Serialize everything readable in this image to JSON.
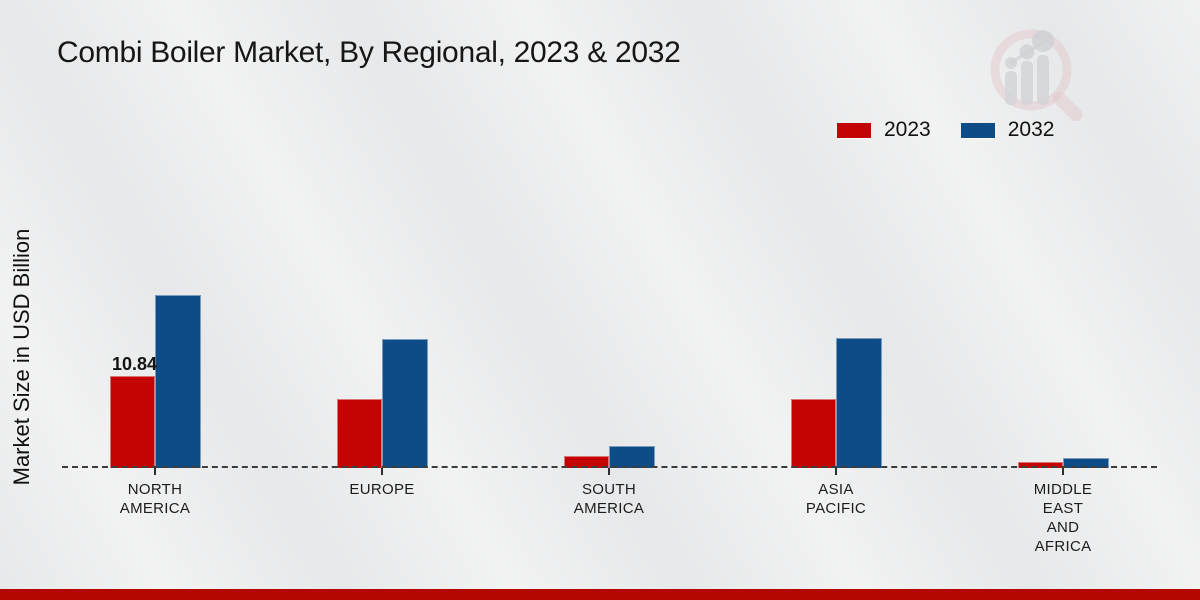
{
  "page": {
    "title": "Combi Boiler Market, By Regional, 2023 & 2032",
    "ylabel": "Market Size in USD Billion"
  },
  "legend": {
    "items": [
      {
        "label": "2023",
        "color": "#c40202"
      },
      {
        "label": "2032",
        "color": "#0d4c87"
      }
    ]
  },
  "colors": {
    "series_2023": "#c40202",
    "series_2032": "#0d4c87",
    "baseline": "#3c3c3c",
    "bottom_bar": "#b50701",
    "background": "#e7e8e9"
  },
  "watermark": {
    "icon": "magnifier-growth-chart-logo"
  },
  "chart_data": {
    "type": "bar",
    "title": "Combi Boiler Market, By Regional, 2023 & 2032",
    "xlabel": "",
    "ylabel": "Market Size in USD Billion",
    "categories": [
      "NORTH AMERICA",
      "EUROPE",
      "SOUTH AMERICA",
      "ASIA PACIFIC",
      "MIDDLE EAST AND AFRICA"
    ],
    "category_label_lines": [
      "NORTH\nAMERICA",
      "EUROPE",
      "SOUTH\nAMERICA",
      "ASIA\nPACIFIC",
      "MIDDLE\nEAST\nAND\nAFRICA"
    ],
    "series": [
      {
        "name": "2023",
        "values": [
          10.84,
          8.2,
          1.4,
          8.2,
          0.7
        ]
      },
      {
        "name": "2032",
        "values": [
          20.5,
          15.2,
          2.6,
          15.4,
          1.2
        ]
      }
    ],
    "data_labels": [
      {
        "series": "2023",
        "category": "NORTH AMERICA",
        "text": "10.84"
      }
    ],
    "ylim": [
      0,
      22
    ],
    "grid": false,
    "legend_position": "top-right",
    "baseline_style": "dashed"
  }
}
